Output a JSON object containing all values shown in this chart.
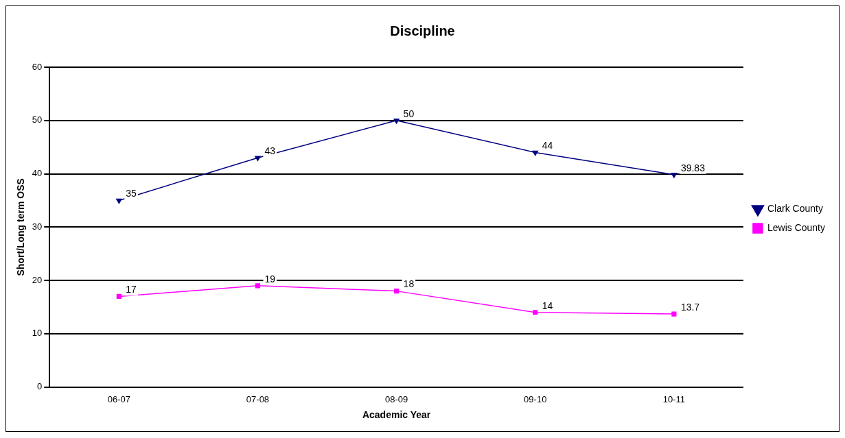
{
  "chart_data": {
    "type": "line",
    "title": "Discipline",
    "xlabel": "Academic Year",
    "ylabel": "Short/Long term OSS",
    "categories": [
      "06-07",
      "07-08",
      "08-09",
      "09-10",
      "10-11"
    ],
    "series": [
      {
        "name": "Clark County",
        "color": "#000080",
        "values": [
          35,
          43,
          50,
          44,
          39.83
        ],
        "marker": "triangle"
      },
      {
        "name": "Lewis County",
        "color": "#ff00ff",
        "values": [
          17,
          19,
          18,
          14,
          13.7
        ],
        "marker": "square"
      }
    ],
    "ylim": [
      0,
      60
    ],
    "yticks": [
      0,
      10,
      20,
      30,
      40,
      50,
      60
    ],
    "grid": "y",
    "legend": "right",
    "data_labels": true,
    "line_style": "solid"
  }
}
